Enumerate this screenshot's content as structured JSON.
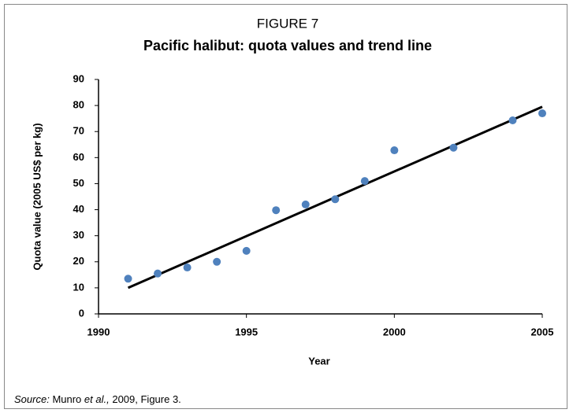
{
  "chart_data": {
    "type": "scatter",
    "kicker": "FIGURE 7",
    "title": "Pacific halibut: quota values and trend line",
    "xlabel": "Year",
    "ylabel": "Quota value (2005 US$ per kg)",
    "x": [
      1991,
      1992,
      1993,
      1994,
      1995,
      1996,
      1997,
      1998,
      1999,
      2000,
      2002,
      2004,
      2005
    ],
    "values": [
      13.5,
      15.5,
      17.8,
      20,
      24.2,
      39.8,
      42,
      44,
      51,
      62.8,
      63.8,
      74.3,
      77
    ],
    "color": "#4f81bd",
    "trend": {
      "x": [
        1991,
        2005
      ],
      "values": [
        10,
        79.5
      ],
      "color": "#000000"
    },
    "xlim": [
      1990,
      2005
    ],
    "xticks": [
      1990,
      1995,
      2000,
      2005
    ],
    "ylim": [
      0,
      90
    ],
    "yticks": [
      0,
      10,
      20,
      30,
      40,
      50,
      60,
      70,
      80,
      90
    ],
    "grid": false
  },
  "source": [
    "Source:",
    "Munro",
    "et al.,",
    "2009, Figure 3."
  ]
}
